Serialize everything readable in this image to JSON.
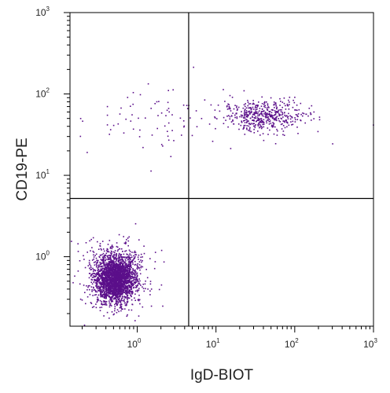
{
  "chart_data": {
    "type": "scatter",
    "xlabel": "IgD-BIOT",
    "ylabel": "CD19-PE",
    "x_scale": "log",
    "y_scale": "log",
    "xlim": [
      0.14,
      1000
    ],
    "ylim": [
      0.14,
      1000
    ],
    "x_ticks": [
      {
        "value": 1,
        "base": "10",
        "exp": "0"
      },
      {
        "value": 10,
        "base": "10",
        "exp": "1"
      },
      {
        "value": 100,
        "base": "10",
        "exp": "2"
      },
      {
        "value": 1000,
        "base": "10",
        "exp": "3"
      }
    ],
    "y_ticks": [
      {
        "value": 1,
        "base": "10",
        "exp": "0"
      },
      {
        "value": 10,
        "base": "10",
        "exp": "1"
      },
      {
        "value": 100,
        "base": "10",
        "exp": "2"
      },
      {
        "value": 1000,
        "base": "10",
        "exp": "3"
      }
    ],
    "quadrant_gate": {
      "x": 4.5,
      "y": 5.2
    },
    "point_color": "#5b0f8a",
    "populations": [
      {
        "center_x": 0.52,
        "center_y": 0.55,
        "spread_log_x": 0.13,
        "spread_log_y": 0.15,
        "count": 2600
      },
      {
        "center_x": 38,
        "center_y": 55,
        "spread_log_x": 0.25,
        "spread_log_y": 0.09,
        "count": 520
      },
      {
        "center_x": 1.3,
        "center_y": 48,
        "spread_log_x": 0.42,
        "spread_log_y": 0.22,
        "count": 70
      }
    ]
  }
}
